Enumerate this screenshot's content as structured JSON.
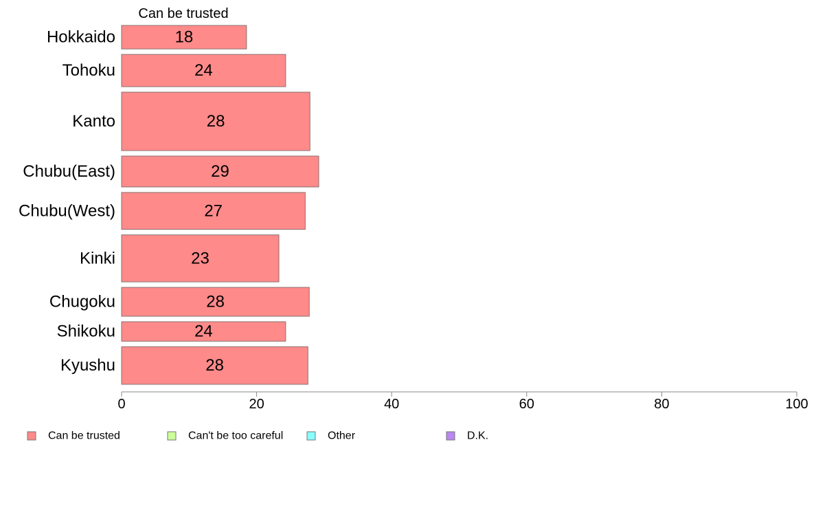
{
  "chart_data": {
    "type": "bar",
    "orientation": "horizontal",
    "stacked": true,
    "variable_width": true,
    "series_title": "Can be trusted",
    "categories": [
      "Hokkaido",
      "Tohoku",
      "Kanto",
      "Chubu(East)",
      "Chubu(West)",
      "Kinki",
      "Chugoku",
      "Shikoku",
      "Kyushu"
    ],
    "category_weights": [
      35,
      48,
      87,
      46,
      55,
      70,
      43,
      29,
      56
    ],
    "series": [
      {
        "name": "Can be trusted",
        "values": [
          18.5,
          24.3,
          27.9,
          29.2,
          27.2,
          23.3,
          27.8,
          24.3,
          27.6
        ],
        "labels": [
          "18",
          "24",
          "28",
          "29",
          "27",
          "23",
          "28",
          "24",
          "28"
        ],
        "color": "#ff8a8a"
      }
    ],
    "xlim": [
      0,
      100
    ],
    "xticks": [
      "0",
      "20",
      "40",
      "60",
      "80",
      "100"
    ],
    "grid": false,
    "legend": {
      "placement": "bottom-left",
      "entries": [
        {
          "label": "Can be trusted",
          "color": "#ff8a8a"
        },
        {
          "label": "Can't be too careful",
          "color": "#ccff99"
        },
        {
          "label": "Other",
          "color": "#88ffff"
        },
        {
          "label": "D.K.",
          "color": "#b988f0"
        }
      ]
    }
  }
}
